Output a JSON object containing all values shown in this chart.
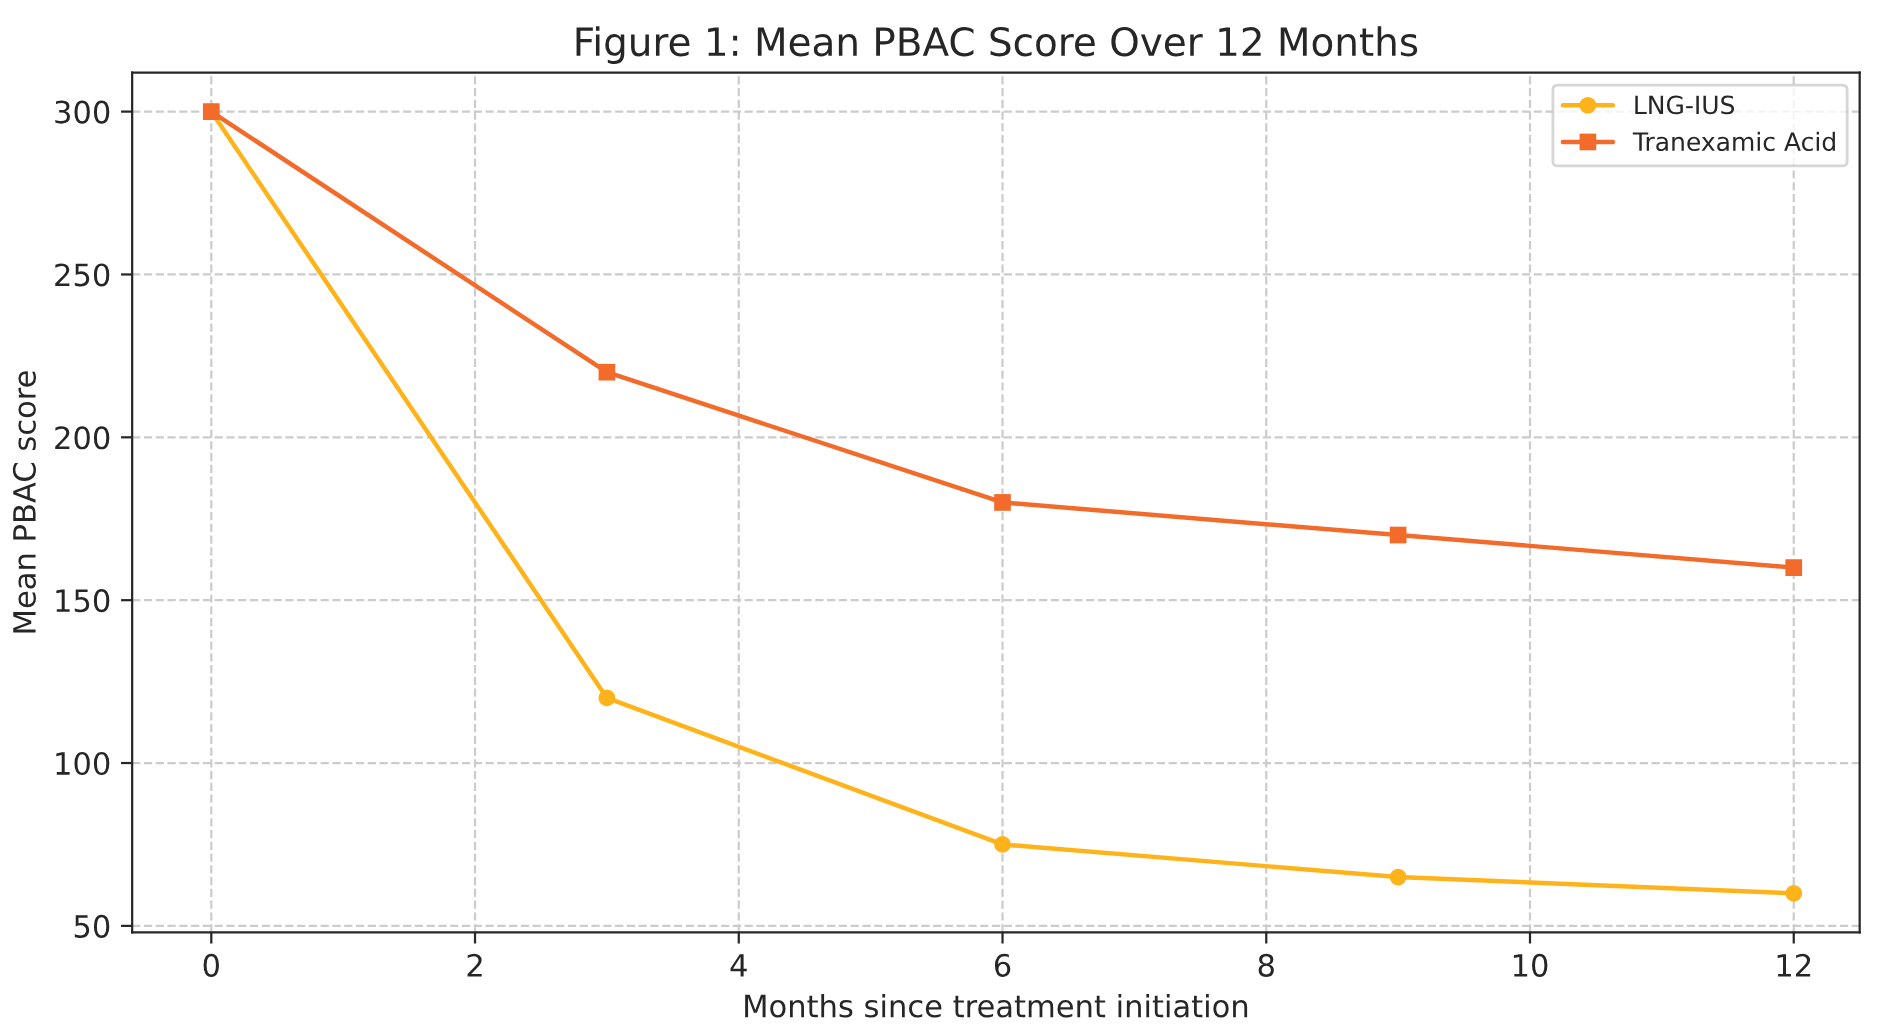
{
  "chart_data": {
    "type": "line",
    "title": "Figure 1: Mean PBAC Score Over 12 Months",
    "xlabel": "Months since treatment initiation",
    "ylabel": "Mean PBAC score",
    "x": [
      0,
      3,
      6,
      9,
      12
    ],
    "series": [
      {
        "name": "LNG-IUS",
        "color": "#ffb31a",
        "marker": "circle",
        "values": [
          300,
          120,
          75,
          65,
          60
        ]
      },
      {
        "name": "Tranexamic Acid",
        "color": "#f26b2a",
        "marker": "square",
        "values": [
          300,
          220,
          180,
          170,
          160
        ]
      }
    ],
    "xlim": [
      -0.6,
      12.5
    ],
    "xticks": [
      0,
      2,
      4,
      6,
      8,
      10,
      12
    ],
    "ylim": [
      48,
      312
    ],
    "yticks": [
      50,
      100,
      150,
      200,
      250,
      300
    ],
    "grid": true,
    "legend": "top right",
    "line_style": "solid"
  }
}
